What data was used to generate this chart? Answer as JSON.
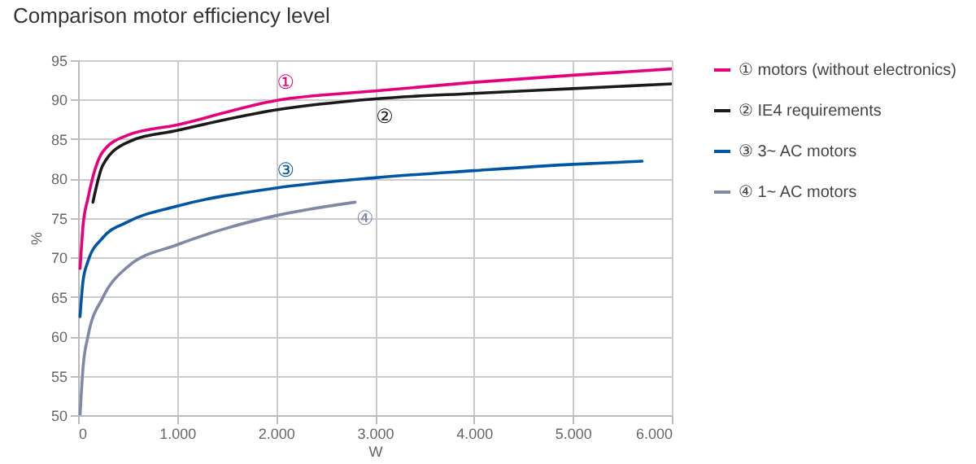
{
  "chart_data": {
    "type": "line",
    "title": "Comparison motor efficiency level",
    "xlabel": "W",
    "ylabel": "%",
    "xlim": [
      0,
      6000
    ],
    "ylim": [
      50,
      95
    ],
    "xticks": [
      0,
      {
        "value": 1000,
        "label": "1.000"
      },
      {
        "value": 2000,
        "label": "2.000"
      },
      {
        "value": 3000,
        "label": "3.000"
      },
      {
        "value": 4000,
        "label": "4.000"
      },
      {
        "value": 5000,
        "label": "5.000"
      },
      {
        "value": 6000,
        "label": "6.000"
      }
    ],
    "yticks": [
      50,
      55,
      60,
      65,
      70,
      75,
      80,
      85,
      90,
      95
    ],
    "grid": true,
    "legend": "right",
    "series": [
      {
        "name": "① motors (without electronics)",
        "color": "#e6007e",
        "x": [
          20,
          50,
          100,
          250,
          500,
          1000,
          2000,
          3000,
          4000,
          5000,
          6000
        ],
        "values": [
          68.6,
          74,
          77.5,
          83.4,
          85.5,
          86.8,
          89.9,
          91.1,
          92.2,
          93.1,
          93.9
        ]
      },
      {
        "name": "② IE4 requirements",
        "color": "#1a1a1a",
        "x": [
          150,
          250,
          500,
          1000,
          2000,
          3000,
          4000,
          5000,
          6000
        ],
        "values": [
          77,
          81.7,
          84.6,
          86.1,
          88.7,
          90.1,
          90.8,
          91.4,
          92
        ]
      },
      {
        "name": "③ 3~ AC motors",
        "color": "#0055a4",
        "x": [
          20,
          50,
          100,
          250,
          500,
          1000,
          2000,
          3000,
          4000,
          5000,
          5700
        ],
        "values": [
          62.5,
          67,
          69.5,
          72.5,
          74.5,
          76.5,
          78.8,
          80.1,
          81,
          81.8,
          82.2
        ]
      },
      {
        "name": "④ 1~ AC motors",
        "color": "#8088a8",
        "x": [
          20,
          50,
          100,
          250,
          500,
          1000,
          1500,
          2000,
          2800
        ],
        "values": [
          50,
          56,
          60,
          64.9,
          68.8,
          71.6,
          73.7,
          75.3,
          77
        ]
      }
    ],
    "annotations": [
      "①",
      "②",
      "③",
      "④"
    ]
  }
}
